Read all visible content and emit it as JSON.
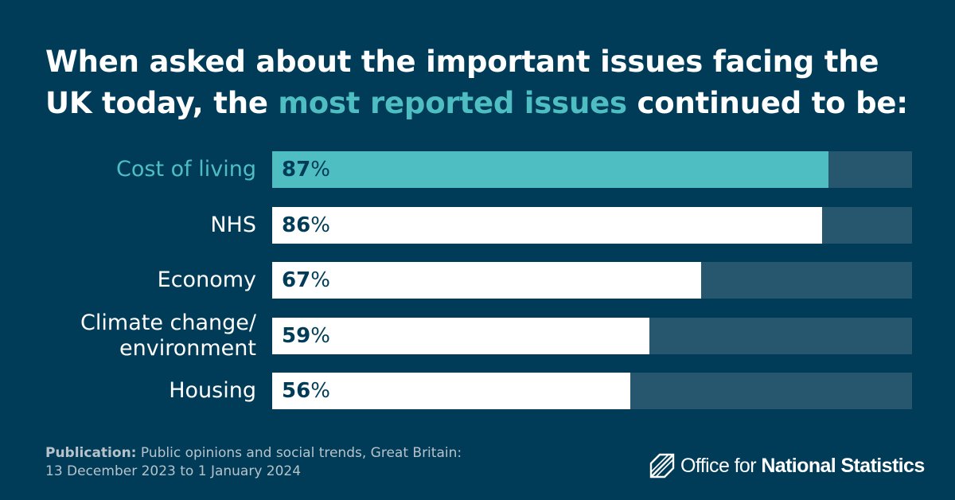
{
  "title": {
    "part1": "When asked about the important issues facing the UK today, the ",
    "highlight": "most reported issues",
    "part2": " continued to be:"
  },
  "chart_data": {
    "type": "bar",
    "orientation": "horizontal",
    "categories": [
      "Cost of living",
      "NHS",
      "Economy",
      "Climate change/ environment",
      "Housing"
    ],
    "label_lines": [
      [
        "Cost of living"
      ],
      [
        "NHS"
      ],
      [
        "Economy"
      ],
      [
        "Climate change/",
        "environment"
      ],
      [
        "Housing"
      ]
    ],
    "values": [
      87,
      86,
      67,
      59,
      56
    ],
    "value_suffix": "%",
    "xlim": [
      0,
      100
    ],
    "highlight_index": 0,
    "colors": {
      "highlight": "#4ebec3",
      "bar": "#ffffff",
      "track": "#27576f",
      "background": "#003c57"
    }
  },
  "footer": {
    "publication_label": "Publication:",
    "publication_text": " Public opinions and social trends, Great Britain:",
    "date_range": "13 December 2023 to 1 January 2024"
  },
  "logo": {
    "text_light": "Office for ",
    "text_bold": "National Statistics"
  }
}
